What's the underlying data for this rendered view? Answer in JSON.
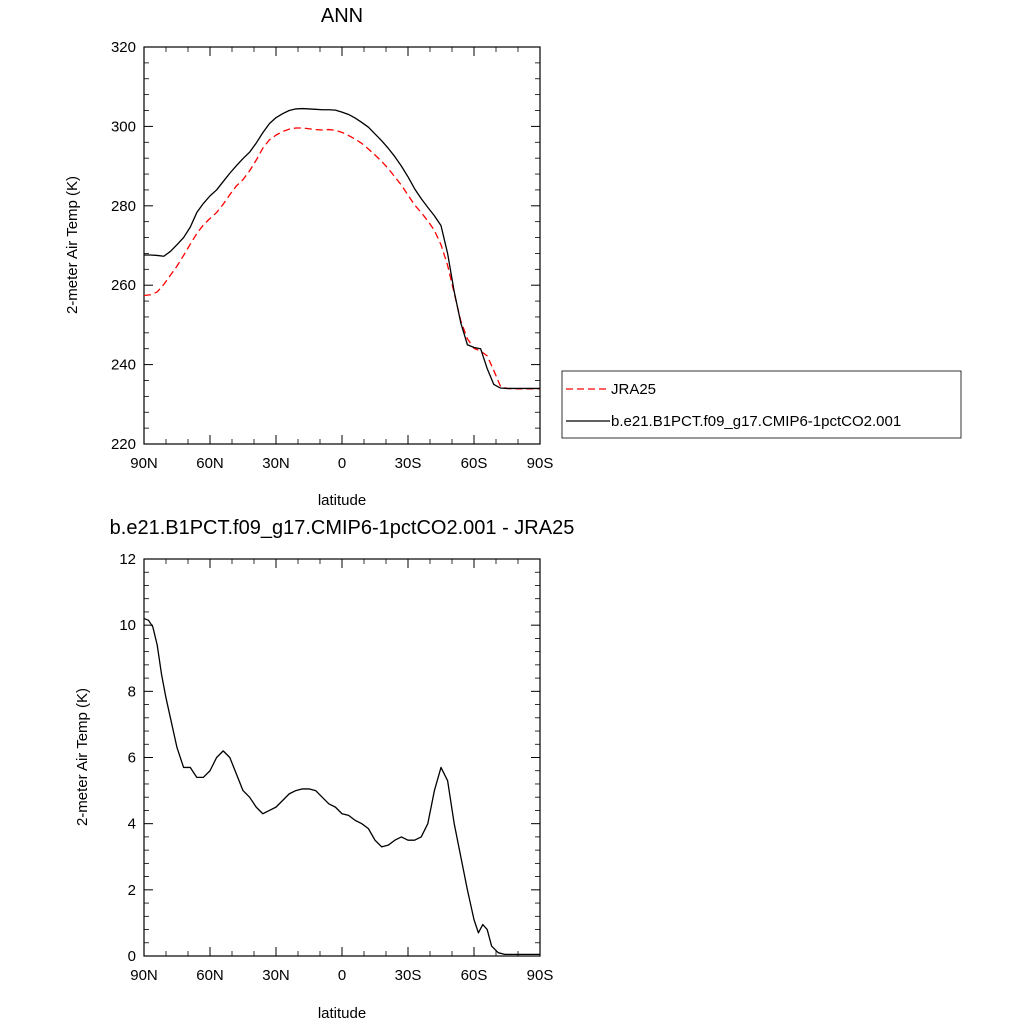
{
  "chart_data": [
    {
      "type": "line",
      "title": "ANN",
      "xlabel": "latitude",
      "ylabel": "2-meter Air Temp (K)",
      "xlim": [
        90,
        -90
      ],
      "ylim": [
        220,
        320
      ],
      "xticks": [
        90,
        60,
        30,
        0,
        -30,
        -60,
        -90
      ],
      "xtick_labels": [
        "90N",
        "60N",
        "30N",
        "0",
        "30S",
        "60S",
        "90S"
      ],
      "yticks": [
        220,
        240,
        260,
        280,
        300,
        320
      ],
      "grid": false,
      "legend_position": "right",
      "series": [
        {
          "name": "JRA25",
          "color": "#ff0000",
          "dash": "dashed",
          "x": [
            90,
            87,
            84,
            81,
            78,
            75,
            72,
            69,
            66,
            63,
            60,
            57,
            54,
            51,
            48,
            45,
            42,
            39,
            36,
            33,
            30,
            27,
            24,
            21,
            18,
            15,
            12,
            9,
            6,
            3,
            0,
            -3,
            -6,
            -9,
            -12,
            -15,
            -18,
            -21,
            -24,
            -27,
            -30,
            -33,
            -36,
            -39,
            -42,
            -45,
            -48,
            -51,
            -54,
            -57,
            -60,
            -63,
            -66,
            -69,
            -72,
            -75,
            -78,
            -81,
            -84,
            -87,
            -90
          ],
          "y": [
            257.4,
            257.6,
            258.3,
            260.2,
            262.5,
            264.8,
            267.5,
            270.3,
            273.0,
            275.2,
            276.8,
            278.3,
            280.4,
            282.8,
            285.0,
            286.6,
            288.8,
            291.5,
            294.5,
            296.6,
            297.8,
            298.7,
            299.3,
            299.6,
            299.6,
            299.4,
            299.2,
            299.1,
            299.2,
            299.0,
            298.5,
            297.7,
            296.8,
            295.7,
            294.3,
            292.8,
            291.2,
            289.4,
            287.3,
            285.2,
            282.7,
            280.2,
            278.3,
            276.2,
            273.8,
            270.2,
            265.0,
            258.0,
            251.0,
            246.5,
            244.1,
            243.4,
            242.2,
            238.5,
            234.6,
            234.0,
            233.9,
            233.9,
            233.9,
            233.9,
            233.9
          ]
        },
        {
          "name": "b.e21.B1PCT.f09_g17.CMIP6-1pctCO2.001",
          "color": "#000000",
          "dash": "solid",
          "x": [
            90,
            87,
            84,
            81,
            78,
            75,
            72,
            69,
            66,
            63,
            60,
            57,
            54,
            51,
            48,
            45,
            42,
            39,
            36,
            33,
            30,
            27,
            24,
            21,
            18,
            15,
            12,
            9,
            6,
            3,
            0,
            -3,
            -6,
            -9,
            -12,
            -15,
            -18,
            -21,
            -24,
            -27,
            -30,
            -33,
            -36,
            -39,
            -42,
            -45,
            -48,
            -51,
            -54,
            -57,
            -60,
            -63,
            -66,
            -69,
            -72,
            -75,
            -78,
            -81,
            -84,
            -87,
            -90
          ],
          "y": [
            267.6,
            267.6,
            267.5,
            267.3,
            268.5,
            270.2,
            272.0,
            274.6,
            278.3,
            280.6,
            282.5,
            284.0,
            286.1,
            288.2,
            290.1,
            291.9,
            293.5,
            295.8,
            298.4,
            300.7,
            302.2,
            303.2,
            304.0,
            304.4,
            304.5,
            304.4,
            304.3,
            304.2,
            304.2,
            304.1,
            303.6,
            303.0,
            302.1,
            301.0,
            299.8,
            298.1,
            296.4,
            294.5,
            292.4,
            290.0,
            287.3,
            284.3,
            281.8,
            279.6,
            277.5,
            275.0,
            268.0,
            258.4,
            250.5,
            245.0,
            244.3,
            244.0,
            239.0,
            235.0,
            234.1,
            234.0,
            234.0,
            234.0,
            234.0,
            234.0,
            234.0
          ]
        }
      ]
    },
    {
      "type": "line",
      "title": "b.e21.B1PCT.f09_g17.CMIP6-1pctCO2.001 - JRA25",
      "xlabel": "latitude",
      "ylabel": "2-meter Air Temp (K)",
      "xlim": [
        90,
        -90
      ],
      "ylim": [
        0,
        12
      ],
      "xticks": [
        90,
        60,
        30,
        0,
        -30,
        -60,
        -90
      ],
      "xtick_labels": [
        "90N",
        "60N",
        "30N",
        "0",
        "30S",
        "60S",
        "90S"
      ],
      "yticks": [
        0,
        2,
        4,
        6,
        8,
        10,
        12
      ],
      "grid": false,
      "series": [
        {
          "color": "#000000",
          "dash": "solid",
          "x": [
            90,
            88,
            86,
            84,
            82,
            80,
            78,
            75,
            72,
            69,
            66,
            63,
            60,
            57,
            54,
            51,
            48,
            45,
            42,
            39,
            36,
            33,
            30,
            27,
            24,
            21,
            18,
            15,
            12,
            9,
            6,
            3,
            0,
            -3,
            -6,
            -9,
            -12,
            -15,
            -18,
            -21,
            -24,
            -27,
            -30,
            -33,
            -36,
            -39,
            -42,
            -45,
            -48,
            -51,
            -54,
            -57,
            -60,
            -62,
            -64,
            -66,
            -68,
            -71,
            -74,
            -77,
            -80,
            -83,
            -86,
            -88,
            -90
          ],
          "y": [
            10.2,
            10.15,
            9.95,
            9.4,
            8.5,
            7.8,
            7.2,
            6.3,
            5.7,
            5.7,
            5.4,
            5.4,
            5.6,
            6.0,
            6.2,
            6.0,
            5.5,
            5.0,
            4.8,
            4.5,
            4.3,
            4.4,
            4.5,
            4.7,
            4.9,
            5.0,
            5.05,
            5.05,
            5.0,
            4.8,
            4.6,
            4.5,
            4.3,
            4.25,
            4.1,
            4.0,
            3.85,
            3.5,
            3.3,
            3.35,
            3.5,
            3.6,
            3.5,
            3.5,
            3.6,
            4.0,
            5.0,
            5.7,
            5.3,
            4.0,
            3.0,
            2.0,
            1.1,
            0.7,
            0.95,
            0.8,
            0.3,
            0.1,
            0.05,
            0.05,
            0.05,
            0.05,
            0.05,
            0.05,
            0.05
          ]
        }
      ]
    }
  ]
}
